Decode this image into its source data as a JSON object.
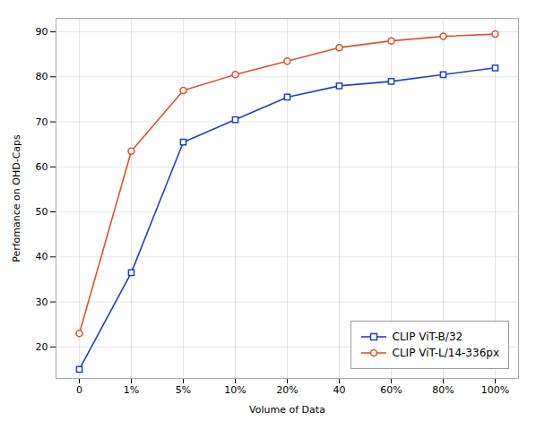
{
  "chart_data": {
    "type": "line",
    "categories": [
      "0",
      "1%",
      "5%",
      "10%",
      "20%",
      "40",
      "60%",
      "80%",
      "100%"
    ],
    "series": [
      {
        "name": "CLIP ViT-B/32",
        "color": "#2040c8",
        "marker": "square",
        "values": [
          15.0,
          36.5,
          65.5,
          70.5,
          75.5,
          78.0,
          79.0,
          80.5,
          82.0
        ]
      },
      {
        "name": "CLIP ViT-L/14-336px",
        "color": "#e05030",
        "marker": "circle",
        "values": [
          23.0,
          63.5,
          77.0,
          80.5,
          83.5,
          86.5,
          88.0,
          89.0,
          89.5
        ]
      }
    ],
    "xlabel": "Volume of Data",
    "ylabel": "Perfomance on OHD-Caps",
    "ylim": [
      13,
      93
    ],
    "yticks": [
      20,
      30,
      40,
      50,
      60,
      70,
      80,
      90
    ],
    "grid": true,
    "legend": "lower right"
  }
}
